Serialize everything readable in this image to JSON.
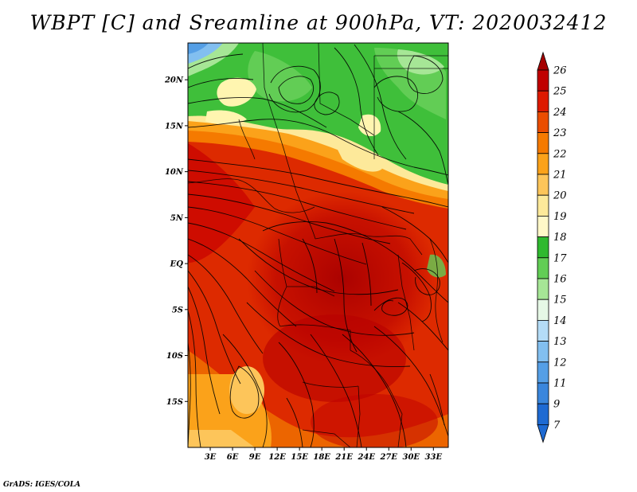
{
  "title": "WBPT [C] and Sreamline at 900hPa, VT: 2020032412",
  "credit": "GrADS: IGES/COLA",
  "map": {
    "variable": "Wet-bulb potential temperature",
    "units": "C",
    "level": "900hPa",
    "lon_range": [
      0,
      35
    ],
    "lat_range": [
      -20,
      24
    ],
    "lat_ticks": [
      {
        "value": 20,
        "label": "20N"
      },
      {
        "value": 15,
        "label": "15N"
      },
      {
        "value": 10,
        "label": "10N"
      },
      {
        "value": 5,
        "label": "5N"
      },
      {
        "value": 0,
        "label": "EQ"
      },
      {
        "value": -5,
        "label": "5S"
      },
      {
        "value": -10,
        "label": "10S"
      },
      {
        "value": -15,
        "label": "15S"
      }
    ],
    "lon_ticks": [
      {
        "value": 3,
        "label": "3E"
      },
      {
        "value": 6,
        "label": "6E"
      },
      {
        "value": 9,
        "label": "9E"
      },
      {
        "value": 12,
        "label": "12E"
      },
      {
        "value": 15,
        "label": "15E"
      },
      {
        "value": 18,
        "label": "18E"
      },
      {
        "value": 21,
        "label": "21E"
      },
      {
        "value": 24,
        "label": "24E"
      },
      {
        "value": 27,
        "label": "27E"
      },
      {
        "value": 30,
        "label": "30E"
      },
      {
        "value": 33,
        "label": "33E"
      }
    ]
  },
  "colorbar": {
    "levels": [
      {
        "label": "26",
        "color": "#a50000"
      },
      {
        "label": "25",
        "color": "#c00000"
      },
      {
        "label": "24",
        "color": "#dd1a00"
      },
      {
        "label": "23",
        "color": "#ea4d00"
      },
      {
        "label": "22",
        "color": "#f57a00"
      },
      {
        "label": "21",
        "color": "#fba21a"
      },
      {
        "label": "20",
        "color": "#fdc55a"
      },
      {
        "label": "19",
        "color": "#fde99a"
      },
      {
        "label": "18",
        "color": "#fff8c8"
      },
      {
        "label": "17",
        "color": "#2fb92f"
      },
      {
        "label": "16",
        "color": "#62cd55"
      },
      {
        "label": "15",
        "color": "#a6e696"
      },
      {
        "label": "14",
        "color": "#e6f8e6"
      },
      {
        "label": "13",
        "color": "#b4dcf7"
      },
      {
        "label": "12",
        "color": "#82bff0"
      },
      {
        "label": "11",
        "color": "#559fe6"
      },
      {
        "label": "9",
        "color": "#3a86dc"
      },
      {
        "label": "7",
        "color": "#1e6ad2"
      }
    ]
  }
}
